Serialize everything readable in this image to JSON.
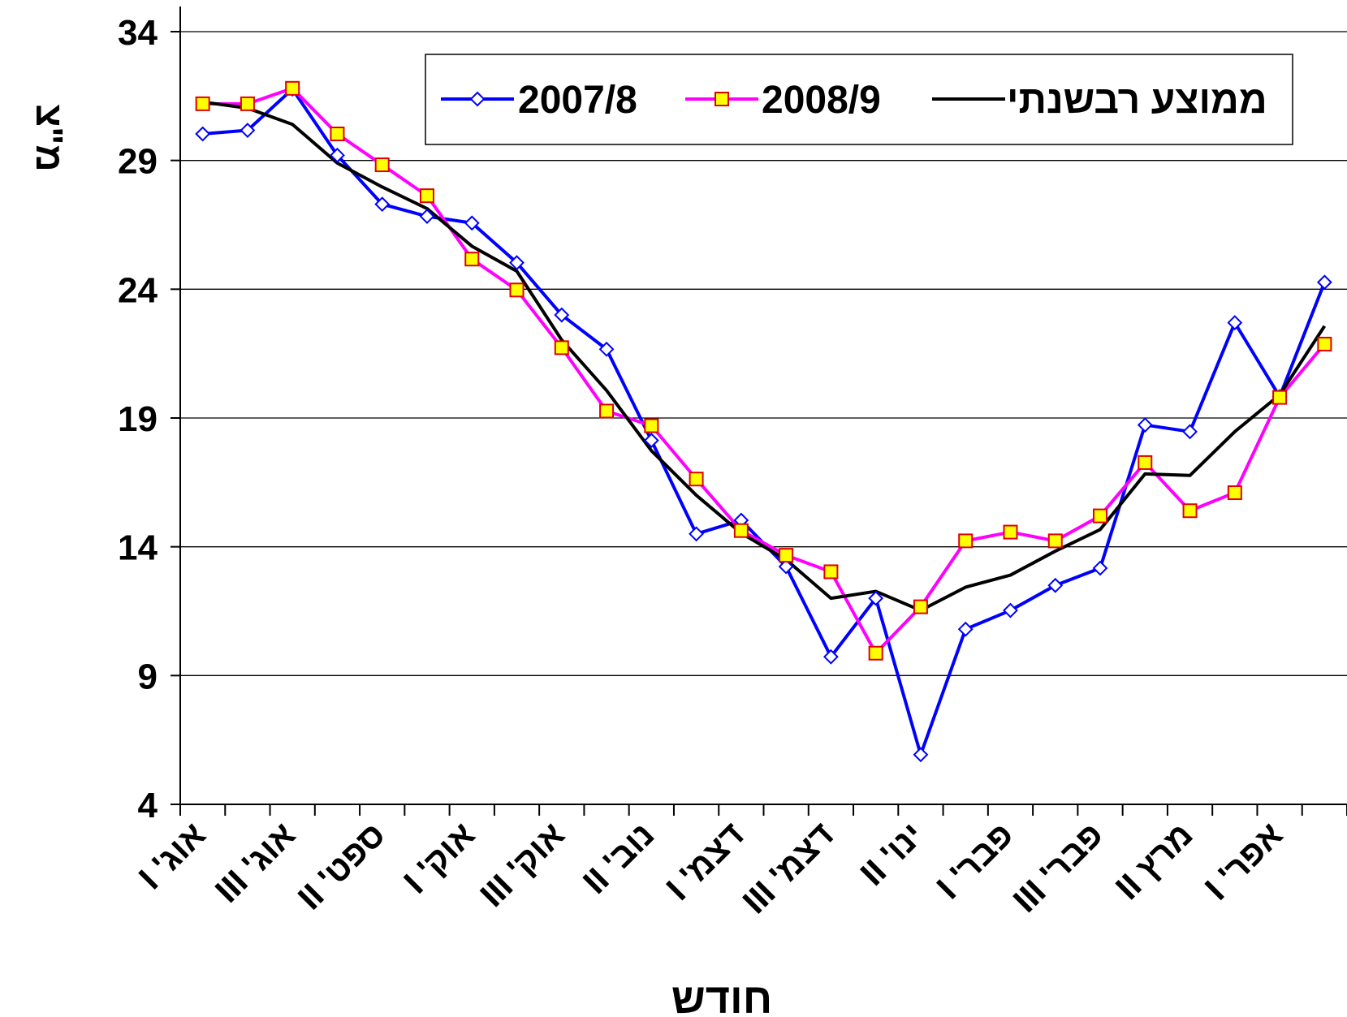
{
  "chart_data": {
    "type": "line",
    "y_label": "מ\"צ",
    "x_label": "חודש",
    "categories": [
      "אוג' I",
      null,
      "אוג' III",
      null,
      "ספט' II",
      null,
      "אוק' I",
      null,
      "אוק' III",
      null,
      "נוב' II",
      null,
      "דצמ' I",
      null,
      "דצמ' III",
      null,
      "ינו' II",
      null,
      "פבר' I",
      null,
      "פבר' III",
      null,
      "מרץ II",
      null,
      "אפר' I",
      null
    ],
    "series": [
      {
        "name": "2007/8",
        "color": "#0000ff",
        "marker": "diamond",
        "marker_fill": "#ffffff",
        "values": [
          30.03,
          30.17,
          31.77,
          29.2,
          27.3,
          26.83,
          26.57,
          25.03,
          23.0,
          21.67,
          18.13,
          14.5,
          15.03,
          13.23,
          9.73,
          12.0,
          5.93,
          10.8,
          11.53,
          12.5,
          13.17,
          18.73,
          18.47,
          22.7,
          19.83,
          24.27
        ]
      },
      {
        "name": "2008/9",
        "color": "#ff00ff",
        "marker": "square",
        "marker_fill": "#ffff00",
        "values": [
          31.2,
          31.2,
          31.8,
          30.03,
          28.83,
          27.63,
          25.17,
          23.97,
          21.73,
          19.27,
          18.7,
          16.63,
          14.63,
          13.67,
          13.03,
          9.87,
          11.67,
          14.23,
          14.57,
          14.23,
          15.2,
          17.27,
          15.4,
          16.1,
          19.8,
          21.87
        ]
      },
      {
        "name": "ממוצע רבשנתי",
        "color": "#000000",
        "marker": "none",
        "marker_fill": "#000000",
        "values": [
          31.27,
          31.03,
          30.4,
          28.9,
          27.97,
          27.13,
          25.67,
          24.7,
          22.03,
          20.07,
          17.73,
          16.0,
          14.53,
          13.5,
          12.0,
          12.27,
          11.53,
          12.43,
          12.9,
          13.83,
          14.67,
          16.83,
          16.77,
          18.47,
          19.9,
          22.57
        ]
      }
    ],
    "ylim": [
      4,
      34
    ],
    "yticks": [
      4,
      9,
      14,
      19,
      24,
      29,
      34
    ],
    "grid": true,
    "legend": "top"
  }
}
